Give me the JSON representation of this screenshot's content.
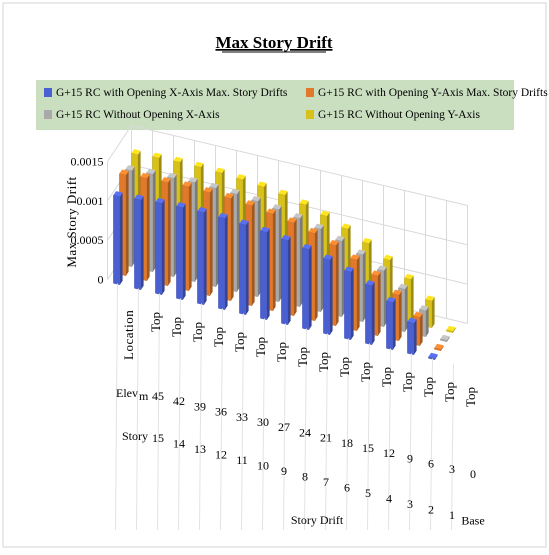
{
  "chart_data": {
    "type": "bar",
    "title": "Max Story Drift",
    "ylabel": "Max Story Drift",
    "xlabel": "Story Drift",
    "ylim": [
      0,
      0.0015
    ],
    "yticks": [
      "0",
      "0.0005",
      "0.001",
      "0.0015"
    ],
    "grid": true,
    "legend_position": "top",
    "header_row_label": "Location",
    "locations": [
      "Top",
      "Top",
      "Top",
      "Top",
      "Top",
      "Top",
      "Top",
      "Top",
      "Top",
      "Top",
      "Top",
      "Top",
      "Top",
      "Top",
      "Top",
      "Top"
    ],
    "elev_label": "Elev",
    "elev_unit": "m",
    "elevations": [
      "45",
      "42",
      "39",
      "36",
      "33",
      "30",
      "27",
      "24",
      "21",
      "18",
      "15",
      "12",
      "9",
      "6",
      "3",
      "0"
    ],
    "story_label": "Story",
    "stories": [
      "15",
      "14",
      "13",
      "12",
      "11",
      "10",
      "9",
      "8",
      "7",
      "6",
      "5",
      "4",
      "3",
      "2",
      "1",
      "Base"
    ],
    "series": [
      {
        "name": "G+15 RC with Opening X-Axis Max. Story Drifts",
        "color": "#4a5fd0",
        "values": [
          0.00112,
          0.00114,
          0.00116,
          0.00117,
          0.00117,
          0.00116,
          0.00114,
          0.00111,
          0.00107,
          0.00102,
          0.00095,
          0.00086,
          0.00075,
          0.0006,
          0.0004,
          0
        ]
      },
      {
        "name": "G+15 RC with Opening Y-Axis Max. Story Drifts",
        "color": "#e07a2a",
        "values": [
          0.00128,
          0.0013,
          0.00131,
          0.00132,
          0.00131,
          0.0013,
          0.00127,
          0.00123,
          0.00118,
          0.00111,
          0.00102,
          0.0009,
          0.00076,
          0.00058,
          0.00036,
          0
        ]
      },
      {
        "name": "G+15 RC Without Opening X-Axis",
        "color": "#a9a9a9",
        "values": [
          0.00122,
          0.00124,
          0.00125,
          0.00126,
          0.00125,
          0.00124,
          0.00121,
          0.00117,
          0.00112,
          0.00105,
          0.00096,
          0.00085,
          0.00071,
          0.00054,
          0.00033,
          0
        ]
      },
      {
        "name": "G+15 RC Without Opening Y-Axis",
        "color": "#d8c21a",
        "values": [
          0.00131,
          0.00133,
          0.00134,
          0.00134,
          0.00133,
          0.00131,
          0.00128,
          0.00124,
          0.00118,
          0.0011,
          0.001,
          0.00088,
          0.00073,
          0.00055,
          0.00034,
          0
        ]
      }
    ]
  }
}
